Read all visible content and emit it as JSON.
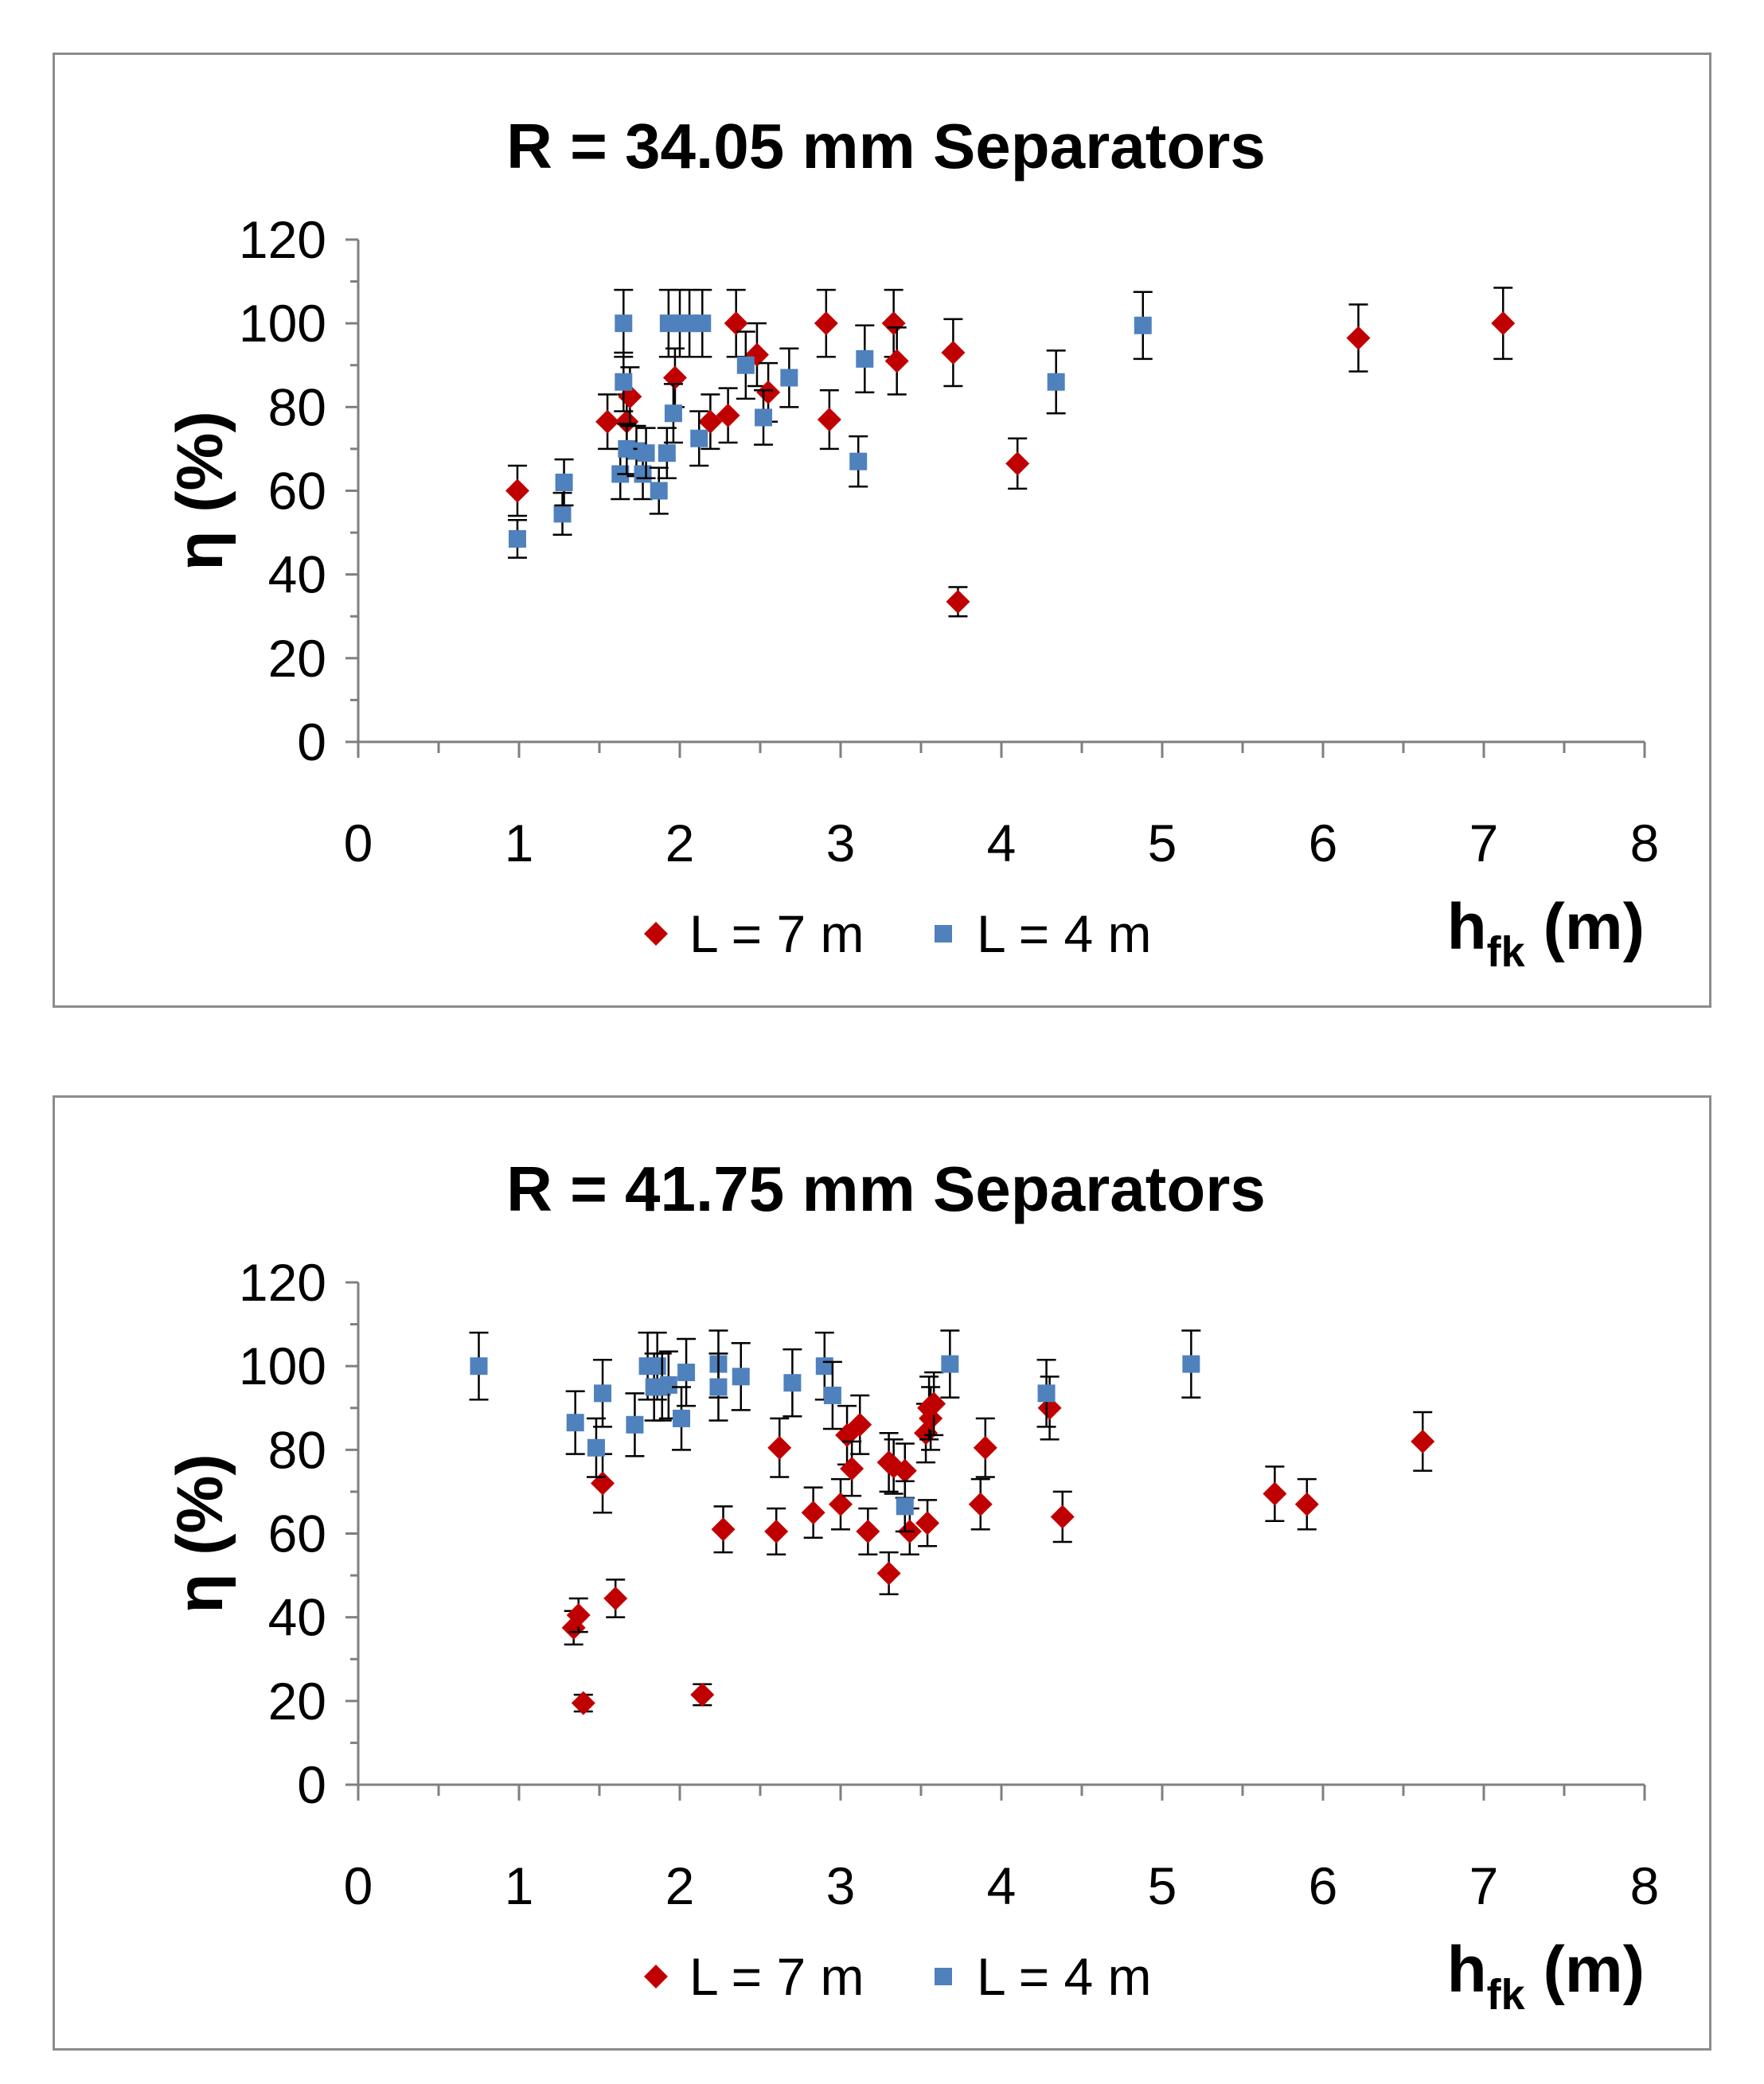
{
  "chart_data": [
    {
      "type": "scatter",
      "title": "R = 34.05 mm Separators",
      "ylabel": "η (%)",
      "xlabel_main": "h",
      "xlabel_sub": "fk",
      "xlabel_unit": "(m)",
      "xlim": [
        0,
        8
      ],
      "ylim": [
        0,
        120
      ],
      "xticks": [
        "0",
        "1",
        "2",
        "3",
        "4",
        "5",
        "6",
        "7",
        "8"
      ],
      "yticks": [
        "0",
        "20",
        "40",
        "60",
        "80",
        "100",
        "120"
      ],
      "legend_position": "bottom-center",
      "error_bars": true,
      "series": [
        {
          "name": "L = 7 m",
          "marker": "diamond",
          "color": "#C00000",
          "points": [
            [
              0.99,
              60,
              6
            ],
            [
              1.55,
              76.5,
              6.5
            ],
            [
              1.67,
              76.5,
              6.5
            ],
            [
              1.69,
              82.5,
              7
            ],
            [
              1.97,
              87,
              7
            ],
            [
              2.19,
              76.5,
              6.5
            ],
            [
              2.3,
              78,
              6.5
            ],
            [
              2.35,
              100,
              8
            ],
            [
              2.48,
              92.5,
              7.5
            ],
            [
              2.55,
              83.5,
              7
            ],
            [
              2.91,
              100,
              8
            ],
            [
              2.93,
              77,
              7
            ],
            [
              3.33,
              100,
              8
            ],
            [
              3.35,
              91,
              8
            ],
            [
              3.7,
              93,
              8
            ],
            [
              3.73,
              33.5,
              3.5
            ],
            [
              4.1,
              66.5,
              6
            ],
            [
              6.22,
              96.5,
              8
            ],
            [
              7.12,
              100,
              8.5
            ]
          ]
        },
        {
          "name": "L = 4 m",
          "marker": "square",
          "color": "#4F81BD",
          "points": [
            [
              0.99,
              48.5,
              4.5
            ],
            [
              1.27,
              54.5,
              5
            ],
            [
              1.28,
              62,
              5.5
            ],
            [
              1.63,
              64,
              6
            ],
            [
              1.65,
              100,
              8
            ],
            [
              1.65,
              86,
              7
            ],
            [
              1.67,
              70,
              6
            ],
            [
              1.73,
              69.5,
              6
            ],
            [
              1.77,
              64,
              6
            ],
            [
              1.79,
              69,
              6
            ],
            [
              1.87,
              60,
              5.5
            ],
            [
              1.92,
              69,
              6
            ],
            [
              1.93,
              100,
              8
            ],
            [
              1.96,
              78.5,
              7
            ],
            [
              2.0,
              100,
              8
            ],
            [
              2.06,
              100,
              8
            ],
            [
              2.12,
              72.5,
              6.5
            ],
            [
              2.14,
              100,
              8
            ],
            [
              2.41,
              90,
              8
            ],
            [
              2.52,
              77.5,
              6.5
            ],
            [
              2.68,
              87,
              7
            ],
            [
              3.11,
              67,
              6
            ],
            [
              3.15,
              91.5,
              8
            ],
            [
              4.34,
              86,
              7.5
            ],
            [
              4.88,
              99.5,
              8
            ]
          ]
        }
      ]
    },
    {
      "type": "scatter",
      "title": "R = 41.75 mm Separators",
      "ylabel": "η (%)",
      "xlabel_main": "h",
      "xlabel_sub": "fk",
      "xlabel_unit": "(m)",
      "xlim": [
        0,
        8
      ],
      "ylim": [
        0,
        120
      ],
      "xticks": [
        "0",
        "1",
        "2",
        "3",
        "4",
        "5",
        "6",
        "7",
        "8"
      ],
      "yticks": [
        "0",
        "20",
        "40",
        "60",
        "80",
        "100",
        "120"
      ],
      "legend_position": "bottom-center",
      "error_bars": true,
      "series": [
        {
          "name": "L = 7 m",
          "marker": "diamond",
          "color": "#C00000",
          "points": [
            [
              1.34,
              37.5,
              4
            ],
            [
              1.37,
              40.5,
              4
            ],
            [
              1.4,
              19.5,
              2
            ],
            [
              1.52,
              72,
              7
            ],
            [
              1.6,
              44.5,
              4.5
            ],
            [
              2.14,
              21.5,
              2.5
            ],
            [
              2.27,
              61,
              5.5
            ],
            [
              2.6,
              60.5,
              5.5
            ],
            [
              2.62,
              80.5,
              7
            ],
            [
              2.83,
              65,
              6
            ],
            [
              3.0,
              67,
              6
            ],
            [
              3.04,
              83.5,
              7
            ],
            [
              3.07,
              75.5,
              6.5
            ],
            [
              3.12,
              86,
              7
            ],
            [
              3.17,
              60.5,
              5.5
            ],
            [
              3.3,
              50.5,
              5
            ],
            [
              3.3,
              77,
              7
            ],
            [
              3.33,
              76,
              6.5
            ],
            [
              3.4,
              75,
              6.5
            ],
            [
              3.43,
              60.5,
              5.5
            ],
            [
              3.53,
              84,
              7
            ],
            [
              3.54,
              62.5,
              5.5
            ],
            [
              3.55,
              90,
              7.5
            ],
            [
              3.56,
              87.5,
              7.5
            ],
            [
              3.58,
              91,
              7.5
            ],
            [
              3.87,
              67,
              6
            ],
            [
              3.9,
              80.5,
              7
            ],
            [
              4.3,
              90,
              7.5
            ],
            [
              4.38,
              64,
              6
            ],
            [
              5.7,
              69.5,
              6.5
            ],
            [
              5.9,
              67,
              6
            ],
            [
              6.62,
              82,
              7
            ]
          ]
        },
        {
          "name": "L = 4 m",
          "marker": "square",
          "color": "#4F81BD",
          "points": [
            [
              0.75,
              100,
              8
            ],
            [
              1.35,
              86.5,
              7.5
            ],
            [
              1.48,
              80.5,
              7
            ],
            [
              1.52,
              93.5,
              8
            ],
            [
              1.72,
              86,
              7.5
            ],
            [
              1.8,
              100,
              8
            ],
            [
              1.84,
              95,
              8
            ],
            [
              1.86,
              100,
              8
            ],
            [
              1.89,
              95,
              8
            ],
            [
              1.93,
              95.5,
              8
            ],
            [
              2.01,
              87.5,
              7.5
            ],
            [
              2.04,
              98.5,
              8
            ],
            [
              2.24,
              100.5,
              8
            ],
            [
              2.24,
              95,
              8
            ],
            [
              2.38,
              97.5,
              8
            ],
            [
              2.7,
              96,
              8
            ],
            [
              2.9,
              100,
              8
            ],
            [
              2.95,
              93,
              8
            ],
            [
              3.4,
              66.5,
              6
            ],
            [
              3.68,
              100.5,
              8
            ],
            [
              4.28,
              93.5,
              8
            ],
            [
              5.18,
              100.5,
              8
            ]
          ]
        }
      ]
    }
  ]
}
